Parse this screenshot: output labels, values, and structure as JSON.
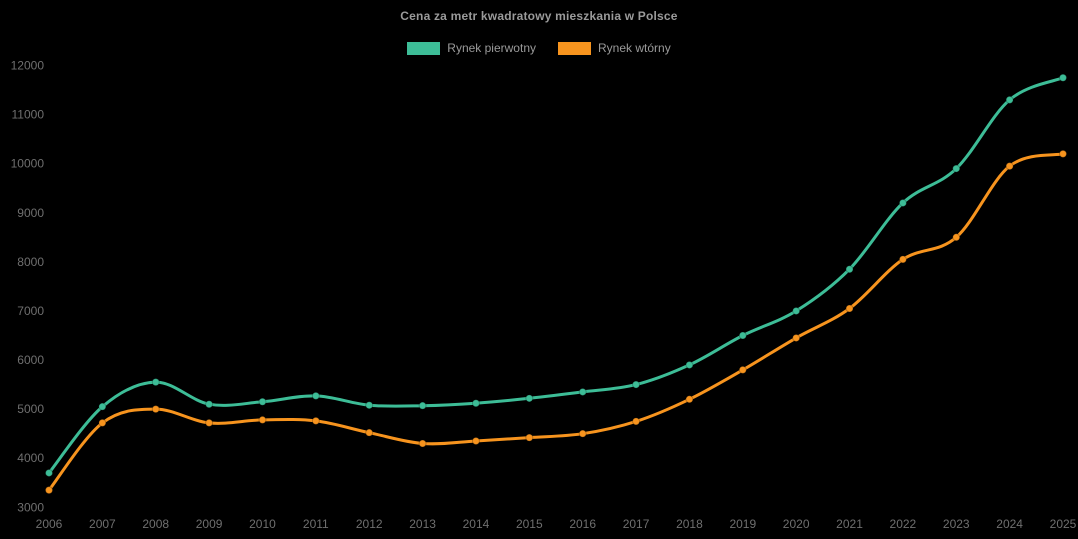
{
  "title": "Cena za metr kwadratowy mieszkania w Polsce",
  "colors": {
    "background": "#000000",
    "title_text": "#9a9a9a",
    "tick_text": "#6f6f6f",
    "primary_series": "#3dbd97",
    "secondary_series": "#f7941e"
  },
  "chart_data": {
    "type": "line",
    "title": "Cena za metr kwadratowy mieszkania w Polsce",
    "xlabel": "",
    "ylabel": "",
    "x": [
      "2006",
      "2007",
      "2008",
      "2009",
      "2010",
      "2011",
      "2012",
      "2013",
      "2014",
      "2015",
      "2016",
      "2017",
      "2018",
      "2019",
      "2020",
      "2021",
      "2022",
      "2023",
      "2024",
      "2025"
    ],
    "series": [
      {
        "name": "Rynek pierwotny",
        "color": "#3dbd97",
        "values": [
          3700,
          5050,
          5550,
          5100,
          5150,
          5270,
          5080,
          5070,
          5120,
          5220,
          5350,
          5500,
          5900,
          6500,
          7000,
          7850,
          9200,
          9900,
          11300,
          11750
        ]
      },
      {
        "name": "Rynek wtórny",
        "color": "#f7941e",
        "values": [
          3350,
          4720,
          5000,
          4720,
          4780,
          4760,
          4520,
          4300,
          4350,
          4420,
          4500,
          4750,
          5200,
          5800,
          6450,
          7050,
          8050,
          8500,
          9950,
          10200
        ]
      }
    ],
    "ylim": [
      3000,
      12000
    ],
    "yticks": [
      3000,
      4000,
      5000,
      6000,
      7000,
      8000,
      9000,
      10000,
      11000,
      12000
    ],
    "grid": false,
    "legend_position": "top",
    "line_smoothing": true,
    "point_markers": true
  }
}
